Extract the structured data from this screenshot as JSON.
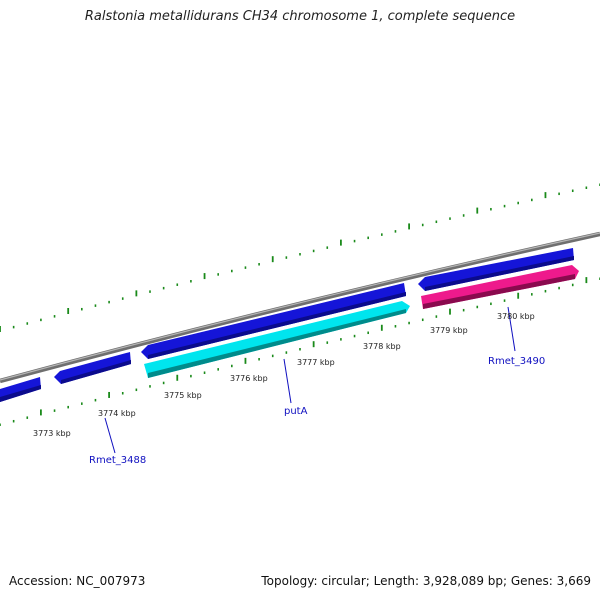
{
  "title": "Ralstonia metallidurans CH34 chromosome 1, complete sequence",
  "footer": {
    "accession": "Accession: NC_007973",
    "summary": "Topology: circular; Length: 3,928,089 bp; Genes: 3,669"
  },
  "colors": {
    "backbone": "#7a7a7a",
    "forward_gene": "#1515d8",
    "reverse_gene_putA": "#00e5ee",
    "reverse_gene_Rmet_3490": "#ee1a8c",
    "ticks": "#1a8a1a",
    "labels": "#1010c0"
  },
  "kbp_labels": [
    "3773 kbp",
    "3774 kbp",
    "3775 kbp",
    "3776 kbp",
    "3777 kbp",
    "3778 kbp",
    "3779 kbp",
    "3780 kbp"
  ],
  "gene_labels": [
    "Rmet_3488",
    "putA",
    "Rmet_3490"
  ]
}
